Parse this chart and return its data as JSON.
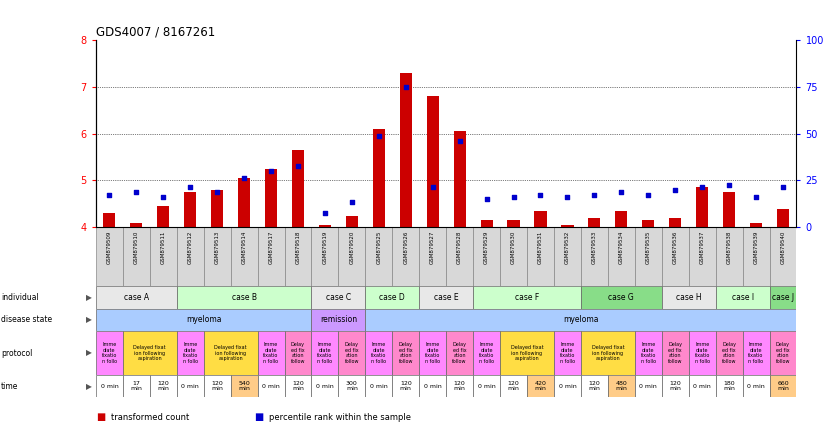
{
  "title": "GDS4007 / 8167261",
  "samples": [
    "GSM879509",
    "GSM879510",
    "GSM879511",
    "GSM879512",
    "GSM879513",
    "GSM879514",
    "GSM879517",
    "GSM879518",
    "GSM879519",
    "GSM879520",
    "GSM879525",
    "GSM879526",
    "GSM879527",
    "GSM879528",
    "GSM879529",
    "GSM879530",
    "GSM879531",
    "GSM879532",
    "GSM879533",
    "GSM879534",
    "GSM879535",
    "GSM879536",
    "GSM879537",
    "GSM879538",
    "GSM879539",
    "GSM879540"
  ],
  "bar_values": [
    4.3,
    4.1,
    4.45,
    4.75,
    4.8,
    5.05,
    5.25,
    5.65,
    4.05,
    4.25,
    6.1,
    7.3,
    6.8,
    6.05,
    4.15,
    4.15,
    4.35,
    4.05,
    4.2,
    4.35,
    4.15,
    4.2,
    4.85,
    4.75,
    4.1,
    4.4
  ],
  "dot_values": [
    4.7,
    4.75,
    4.65,
    4.85,
    4.75,
    5.05,
    5.2,
    5.3,
    4.3,
    4.55,
    5.95,
    7.0,
    4.85,
    5.85,
    4.6,
    4.65,
    4.7,
    4.65,
    4.7,
    4.75,
    4.7,
    4.8,
    4.85,
    4.9,
    4.65,
    4.85
  ],
  "ylim": [
    4.0,
    8.0
  ],
  "y2lim": [
    0,
    100
  ],
  "yticks": [
    4,
    5,
    6,
    7,
    8
  ],
  "y2ticks": [
    0,
    25,
    50,
    75,
    100
  ],
  "bar_color": "#cc0000",
  "dot_color": "#0000cc",
  "bar_base": 4.0,
  "sample_bg_colors": [
    "#d8d8d8",
    "#d8d8d8",
    "#d8d8d8",
    "#d8d8d8",
    "#d8d8d8",
    "#d8d8d8",
    "#d8d8d8",
    "#d8d8d8",
    "#d8d8d8",
    "#d8d8d8",
    "#d8d8d8",
    "#d8d8d8",
    "#d8d8d8",
    "#d8d8d8",
    "#d8d8d8",
    "#d8d8d8",
    "#d8d8d8",
    "#d8d8d8",
    "#d8d8d8",
    "#d8d8d8",
    "#d8d8d8",
    "#d8d8d8",
    "#d8d8d8",
    "#d8d8d8",
    "#d8d8d8",
    "#d8d8d8"
  ],
  "individuals": [
    {
      "label": "case A",
      "start": 0,
      "end": 3,
      "color": "#e8e8e8"
    },
    {
      "label": "case B",
      "start": 3,
      "end": 8,
      "color": "#ccffcc"
    },
    {
      "label": "case C",
      "start": 8,
      "end": 10,
      "color": "#e8e8e8"
    },
    {
      "label": "case D",
      "start": 10,
      "end": 12,
      "color": "#ccffcc"
    },
    {
      "label": "case E",
      "start": 12,
      "end": 14,
      "color": "#e8e8e8"
    },
    {
      "label": "case F",
      "start": 14,
      "end": 18,
      "color": "#ccffcc"
    },
    {
      "label": "case G",
      "start": 18,
      "end": 21,
      "color": "#88dd88"
    },
    {
      "label": "case H",
      "start": 21,
      "end": 23,
      "color": "#e8e8e8"
    },
    {
      "label": "case I",
      "start": 23,
      "end": 25,
      "color": "#ccffcc"
    },
    {
      "label": "case J",
      "start": 25,
      "end": 26,
      "color": "#88dd88"
    }
  ],
  "disease_states": [
    {
      "label": "myeloma",
      "start": 0,
      "end": 8,
      "color": "#aaccff"
    },
    {
      "label": "remission",
      "start": 8,
      "end": 10,
      "color": "#cc99ff"
    },
    {
      "label": "myeloma",
      "start": 10,
      "end": 26,
      "color": "#aaccff"
    }
  ],
  "protocols": [
    {
      "label": "Imme\ndiate\nfixatio\nn follo",
      "start": 0,
      "end": 1,
      "color": "#ff88ff"
    },
    {
      "label": "Delayed fixat\nion following\naspiration",
      "start": 1,
      "end": 3,
      "color": "#ffdd44"
    },
    {
      "label": "Imme\ndiate\nfixatio\nn follo",
      "start": 3,
      "end": 4,
      "color": "#ff88ff"
    },
    {
      "label": "Delayed fixat\nion following\naspiration",
      "start": 4,
      "end": 6,
      "color": "#ffdd44"
    },
    {
      "label": "Imme\ndiate\nfixatio\nn follo",
      "start": 6,
      "end": 7,
      "color": "#ff88ff"
    },
    {
      "label": "Delay\ned fix\nation\nfollow",
      "start": 7,
      "end": 8,
      "color": "#ff88cc"
    },
    {
      "label": "Imme\ndiate\nfixatio\nn follo",
      "start": 8,
      "end": 9,
      "color": "#ff88ff"
    },
    {
      "label": "Delay\ned fix\nation\nfollow",
      "start": 9,
      "end": 10,
      "color": "#ff88cc"
    },
    {
      "label": "Imme\ndiate\nfixatio\nn follo",
      "start": 10,
      "end": 11,
      "color": "#ff88ff"
    },
    {
      "label": "Delay\ned fix\nation\nfollow",
      "start": 11,
      "end": 12,
      "color": "#ff88cc"
    },
    {
      "label": "Imme\ndiate\nfixatio\nn follo",
      "start": 12,
      "end": 13,
      "color": "#ff88ff"
    },
    {
      "label": "Delay\ned fix\nation\nfollow",
      "start": 13,
      "end": 14,
      "color": "#ff88cc"
    },
    {
      "label": "Imme\ndiate\nfixatio\nn follo",
      "start": 14,
      "end": 15,
      "color": "#ff88ff"
    },
    {
      "label": "Delayed fixat\nion following\naspiration",
      "start": 15,
      "end": 17,
      "color": "#ffdd44"
    },
    {
      "label": "Imme\ndiate\nfixatio\nn follo",
      "start": 17,
      "end": 18,
      "color": "#ff88ff"
    },
    {
      "label": "Delayed fixat\nion following\naspiration",
      "start": 18,
      "end": 20,
      "color": "#ffdd44"
    },
    {
      "label": "Imme\ndiate\nfixatio\nn follo",
      "start": 20,
      "end": 21,
      "color": "#ff88ff"
    },
    {
      "label": "Delay\ned fix\nation\nfollow",
      "start": 21,
      "end": 22,
      "color": "#ff88cc"
    },
    {
      "label": "Imme\ndiate\nfixatio\nn follo",
      "start": 22,
      "end": 23,
      "color": "#ff88ff"
    },
    {
      "label": "Delay\ned fix\nation\nfollow",
      "start": 23,
      "end": 24,
      "color": "#ff88cc"
    },
    {
      "label": "Imme\ndiate\nfixatio\nn follo",
      "start": 24,
      "end": 25,
      "color": "#ff88ff"
    },
    {
      "label": "Delay\ned fix\nation\nfollow",
      "start": 25,
      "end": 26,
      "color": "#ff88cc"
    }
  ],
  "times": [
    {
      "label": "0 min",
      "start": 0,
      "end": 1,
      "color": "#ffffff"
    },
    {
      "label": "17\nmin",
      "start": 1,
      "end": 2,
      "color": "#ffffff"
    },
    {
      "label": "120\nmin",
      "start": 2,
      "end": 3,
      "color": "#ffffff"
    },
    {
      "label": "0 min",
      "start": 3,
      "end": 4,
      "color": "#ffffff"
    },
    {
      "label": "120\nmin",
      "start": 4,
      "end": 5,
      "color": "#ffffff"
    },
    {
      "label": "540\nmin",
      "start": 5,
      "end": 6,
      "color": "#ffcc88"
    },
    {
      "label": "0 min",
      "start": 6,
      "end": 7,
      "color": "#ffffff"
    },
    {
      "label": "120\nmin",
      "start": 7,
      "end": 8,
      "color": "#ffffff"
    },
    {
      "label": "0 min",
      "start": 8,
      "end": 9,
      "color": "#ffffff"
    },
    {
      "label": "300\nmin",
      "start": 9,
      "end": 10,
      "color": "#ffffff"
    },
    {
      "label": "0 min",
      "start": 10,
      "end": 11,
      "color": "#ffffff"
    },
    {
      "label": "120\nmin",
      "start": 11,
      "end": 12,
      "color": "#ffffff"
    },
    {
      "label": "0 min",
      "start": 12,
      "end": 13,
      "color": "#ffffff"
    },
    {
      "label": "120\nmin",
      "start": 13,
      "end": 14,
      "color": "#ffffff"
    },
    {
      "label": "0 min",
      "start": 14,
      "end": 15,
      "color": "#ffffff"
    },
    {
      "label": "120\nmin",
      "start": 15,
      "end": 16,
      "color": "#ffffff"
    },
    {
      "label": "420\nmin",
      "start": 16,
      "end": 17,
      "color": "#ffcc88"
    },
    {
      "label": "0 min",
      "start": 17,
      "end": 18,
      "color": "#ffffff"
    },
    {
      "label": "120\nmin",
      "start": 18,
      "end": 19,
      "color": "#ffffff"
    },
    {
      "label": "480\nmin",
      "start": 19,
      "end": 20,
      "color": "#ffcc88"
    },
    {
      "label": "0 min",
      "start": 20,
      "end": 21,
      "color": "#ffffff"
    },
    {
      "label": "120\nmin",
      "start": 21,
      "end": 22,
      "color": "#ffffff"
    },
    {
      "label": "0 min",
      "start": 22,
      "end": 23,
      "color": "#ffffff"
    },
    {
      "label": "180\nmin",
      "start": 23,
      "end": 24,
      "color": "#ffffff"
    },
    {
      "label": "0 min",
      "start": 24,
      "end": 25,
      "color": "#ffffff"
    },
    {
      "label": "660\nmin",
      "start": 25,
      "end": 26,
      "color": "#ffcc88"
    }
  ],
  "row_labels": [
    "individual",
    "disease state",
    "protocol",
    "time"
  ],
  "legend_bar": "transformed count",
  "legend_dot": "percentile rank within the sample",
  "bg_color": "#ffffff"
}
